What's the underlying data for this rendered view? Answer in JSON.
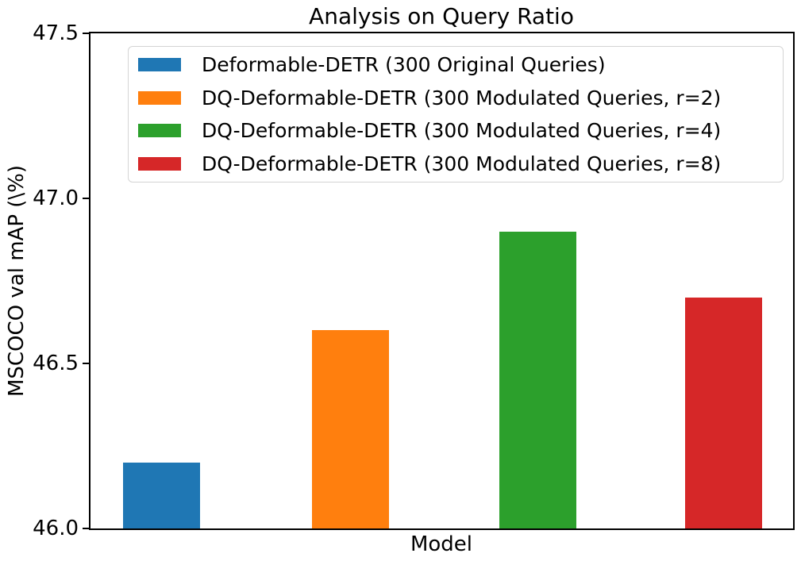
{
  "chart_data": {
    "type": "bar",
    "title": "Analysis on Query Ratio",
    "xlabel": "Model",
    "ylabel": "MSCOCO val mAP (\\%)",
    "ylim": [
      46.0,
      47.5
    ],
    "ytick_labels": [
      "46.0",
      "46.5",
      "47.0",
      "47.5"
    ],
    "grid": false,
    "legend_position": "upper-left-inside",
    "categories": [
      "Deformable-DETR (300 Original Queries)",
      "DQ-Deformable-DETR (300 Modulated Queries, r=2)",
      "DQ-Deformable-DETR (300 Modulated Queries, r=4)",
      "DQ-Deformable-DETR (300 Modulated Queries, r=8)"
    ],
    "values": [
      46.2,
      46.6,
      46.9,
      46.7
    ],
    "colors": [
      "#1f77b4",
      "#ff7f0e",
      "#2ca02c",
      "#d62728"
    ],
    "bar_centers_pct": [
      10.1,
      37.0,
      63.7,
      90.1
    ],
    "bar_width_pct": 10.95,
    "axis_color": "#000000",
    "background_color": "#ffffff"
  }
}
